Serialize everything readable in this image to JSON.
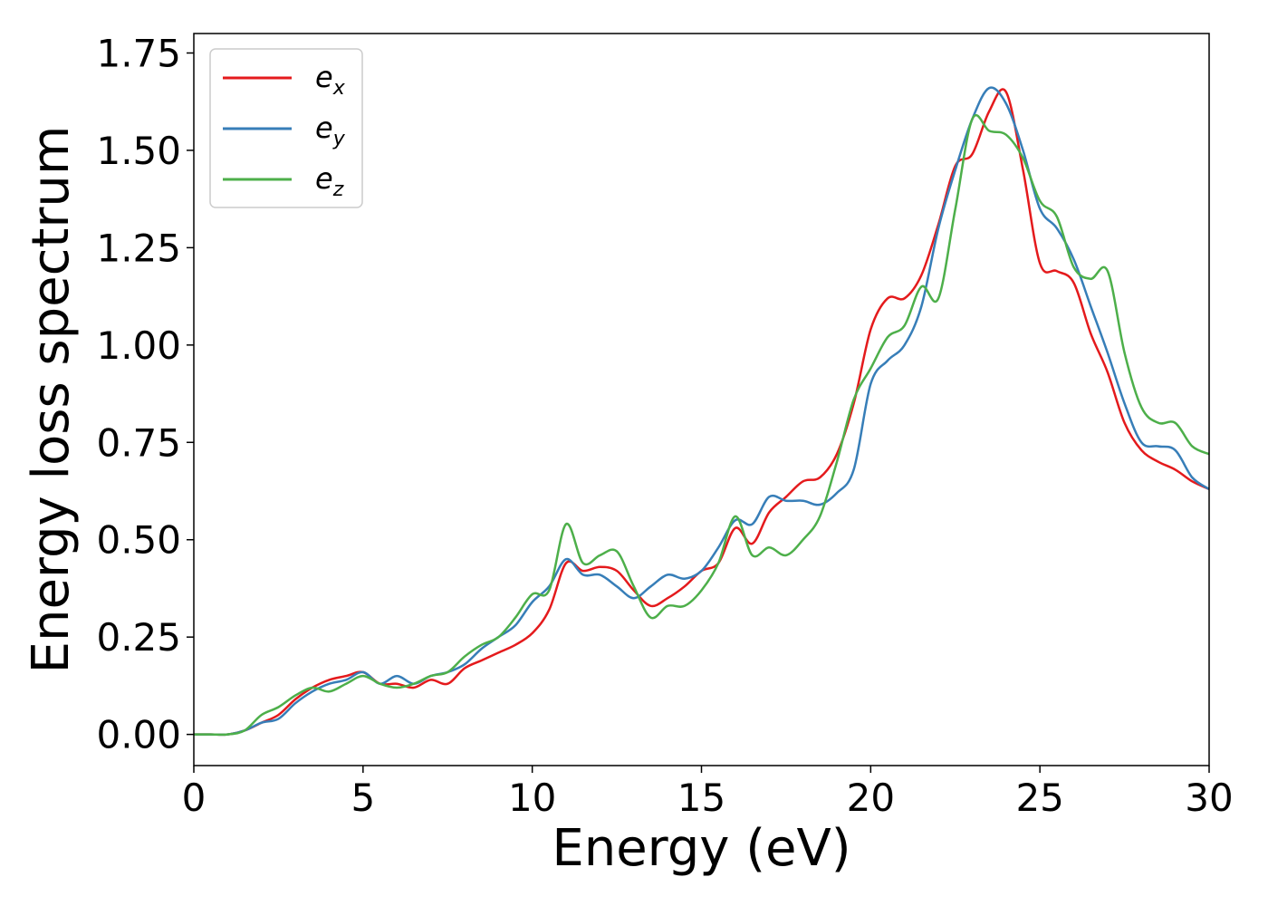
{
  "chart_data": {
    "type": "line",
    "xlabel": "Energy (eV)",
    "ylabel": "Energy loss spectrum",
    "xlim": [
      0,
      30
    ],
    "ylim": [
      -0.08,
      1.8
    ],
    "xticks": [
      "0",
      "5",
      "10",
      "15",
      "20",
      "25",
      "30"
    ],
    "yticks": [
      "0.00",
      "0.25",
      "0.50",
      "0.75",
      "1.00",
      "1.25",
      "1.50",
      "1.75"
    ],
    "grid": false,
    "legend_position": "top-left",
    "x": [
      0,
      0.5,
      1,
      1.5,
      2,
      2.5,
      3,
      3.5,
      4,
      4.5,
      5,
      5.5,
      6,
      6.5,
      7,
      7.5,
      8,
      8.5,
      9,
      9.5,
      10,
      10.5,
      11,
      11.5,
      12,
      12.5,
      13,
      13.5,
      14,
      14.5,
      15,
      15.5,
      16,
      16.5,
      17,
      17.5,
      18,
      18.5,
      19,
      19.5,
      20,
      20.5,
      21,
      21.5,
      22,
      22.5,
      23,
      23.5,
      24,
      24.5,
      25,
      25.5,
      26,
      26.5,
      27,
      27.5,
      28,
      28.5,
      29,
      29.5,
      30
    ],
    "series": [
      {
        "name": "e",
        "subscript": "x",
        "color": "#e41a1c",
        "values": [
          0.0,
          0.0,
          0.0,
          0.01,
          0.03,
          0.05,
          0.09,
          0.12,
          0.14,
          0.15,
          0.16,
          0.13,
          0.13,
          0.12,
          0.14,
          0.13,
          0.17,
          0.19,
          0.21,
          0.23,
          0.26,
          0.32,
          0.44,
          0.42,
          0.43,
          0.42,
          0.37,
          0.33,
          0.35,
          0.38,
          0.42,
          0.44,
          0.53,
          0.49,
          0.57,
          0.61,
          0.65,
          0.66,
          0.72,
          0.85,
          1.04,
          1.12,
          1.12,
          1.18,
          1.31,
          1.46,
          1.49,
          1.6,
          1.65,
          1.45,
          1.21,
          1.19,
          1.16,
          1.03,
          0.93,
          0.8,
          0.73,
          0.7,
          0.68,
          0.65,
          0.63
        ]
      },
      {
        "name": "e",
        "subscript": "y",
        "color": "#377eb8",
        "values": [
          0.0,
          0.0,
          0.0,
          0.01,
          0.03,
          0.04,
          0.08,
          0.11,
          0.13,
          0.14,
          0.16,
          0.13,
          0.15,
          0.13,
          0.15,
          0.16,
          0.18,
          0.22,
          0.25,
          0.28,
          0.34,
          0.38,
          0.45,
          0.41,
          0.41,
          0.38,
          0.35,
          0.38,
          0.41,
          0.4,
          0.42,
          0.48,
          0.55,
          0.54,
          0.61,
          0.6,
          0.6,
          0.59,
          0.62,
          0.68,
          0.9,
          0.96,
          1.0,
          1.1,
          1.3,
          1.45,
          1.58,
          1.66,
          1.62,
          1.5,
          1.35,
          1.3,
          1.22,
          1.1,
          0.98,
          0.85,
          0.75,
          0.74,
          0.73,
          0.66,
          0.63
        ]
      },
      {
        "name": "e",
        "subscript": "z",
        "color": "#4daf4a",
        "values": [
          0.0,
          0.0,
          0.0,
          0.01,
          0.05,
          0.07,
          0.1,
          0.12,
          0.11,
          0.13,
          0.15,
          0.13,
          0.12,
          0.13,
          0.15,
          0.16,
          0.2,
          0.23,
          0.25,
          0.3,
          0.36,
          0.37,
          0.54,
          0.44,
          0.46,
          0.47,
          0.38,
          0.3,
          0.33,
          0.33,
          0.37,
          0.44,
          0.56,
          0.46,
          0.48,
          0.46,
          0.5,
          0.56,
          0.7,
          0.86,
          0.94,
          1.02,
          1.05,
          1.15,
          1.12,
          1.35,
          1.58,
          1.55,
          1.54,
          1.48,
          1.37,
          1.33,
          1.2,
          1.17,
          1.19,
          0.98,
          0.84,
          0.8,
          0.8,
          0.74,
          0.72
        ]
      }
    ]
  }
}
